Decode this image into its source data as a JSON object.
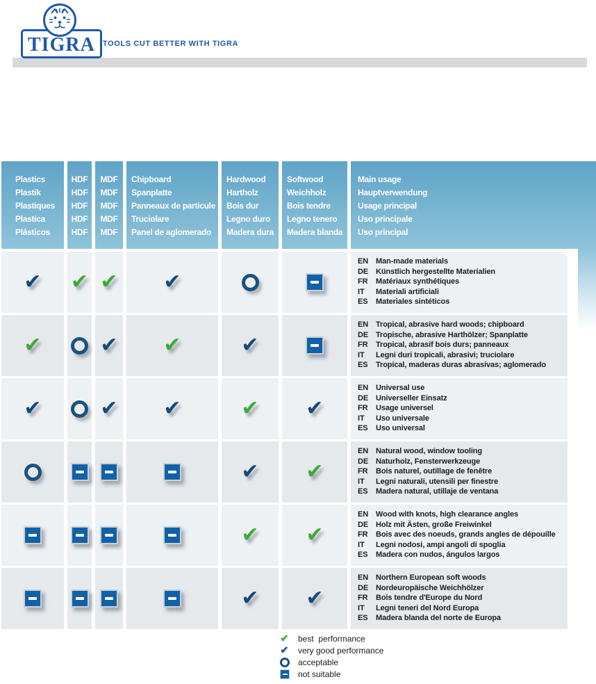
{
  "logo": {
    "brand": "TIGRA",
    "tagline": "TOOLS CUT BETTER WITH TIGRA"
  },
  "colors": {
    "brand_blue": "#2058a8",
    "header_gradient_top": "#5fa4c7",
    "header_gradient_bottom": "#8fc3da",
    "best_green": "#3ea93a",
    "very_good_navy": "#17497a",
    "acceptable_ring_blue": "#1a5181",
    "not_suitable_blue": "#1161a8",
    "row_light": "#eef1f3",
    "row_dark": "#e5e9ec",
    "gray_bar": "#d8d9da"
  },
  "table": {
    "header": {
      "columns": [
        {
          "id": "plastics",
          "lines": [
            "Plastics",
            "Plastik",
            "Plastiques",
            "Plastica",
            "Plásticos"
          ]
        },
        {
          "id": "hdf",
          "lines": [
            "HDF",
            "HDF",
            "HDF",
            "HDF",
            "HDF"
          ]
        },
        {
          "id": "mdf",
          "lines": [
            "MDF",
            "MDF",
            "MDF",
            "MDF",
            "MDF"
          ]
        },
        {
          "id": "chipboard",
          "lines": [
            "Chipboard",
            "Spanplatte",
            "Panneaux de particule",
            "Truciolare",
            "Panel de aglomerado"
          ]
        },
        {
          "id": "hardwood",
          "lines": [
            "Hardwood",
            "Hartholz",
            "Bois dur",
            "Legno duro",
            "Madera dura"
          ]
        },
        {
          "id": "softwood",
          "lines": [
            "Softwood",
            "Weichholz",
            "Bois tendre",
            "Legno tenero",
            "Madera blanda"
          ]
        },
        {
          "id": "main-usage",
          "lines": [
            "Main usage",
            "Hauptverwendung",
            "Usage principal",
            "Uso principale",
            "Uso principal"
          ]
        }
      ]
    },
    "rows": [
      {
        "ratings": [
          "very-good",
          "best",
          "best",
          "very-good",
          "acceptable",
          "not-suitable"
        ],
        "usage": [
          [
            "EN",
            "Man-made materials"
          ],
          [
            "DE",
            "Künstlich hergestellte Materialien"
          ],
          [
            "FR",
            "Matériaux synthétiques"
          ],
          [
            "IT",
            "Materiali artificiali"
          ],
          [
            "ES",
            "Materiales sintéticos"
          ]
        ]
      },
      {
        "ratings": [
          "best",
          "acceptable",
          "very-good",
          "best",
          "very-good",
          "not-suitable"
        ],
        "usage": [
          [
            "EN",
            "Tropical, abrasive hard woods; chipboard"
          ],
          [
            "DE",
            "Tropische, abrasive Harthölzer; Spanplatte"
          ],
          [
            "FR",
            "Tropical, abrasif bois durs; panneaux"
          ],
          [
            "IT",
            "Legni duri tropicali, abrasivi; truciolare"
          ],
          [
            "ES",
            "Tropical, maderas duras abrasivas; aglomerado"
          ]
        ]
      },
      {
        "ratings": [
          "very-good",
          "acceptable",
          "very-good",
          "very-good",
          "best",
          "very-good"
        ],
        "usage": [
          [
            "EN",
            "Universal use"
          ],
          [
            "DE",
            "Universeller Einsatz"
          ],
          [
            "FR",
            "Usage universel"
          ],
          [
            "IT",
            "Uso universale"
          ],
          [
            "ES",
            "Uso universal"
          ]
        ]
      },
      {
        "ratings": [
          "acceptable",
          "not-suitable",
          "not-suitable",
          "not-suitable",
          "very-good",
          "best"
        ],
        "usage": [
          [
            "EN",
            "Natural wood, window tooling"
          ],
          [
            "DE",
            "Naturholz, Fensterwerkzeuge"
          ],
          [
            "FR",
            "Bois naturel, outillage de fenêtre"
          ],
          [
            "IT",
            "Legni naturali, utensili per finestre"
          ],
          [
            "ES",
            "Madera natural, utillaje de ventana"
          ]
        ]
      },
      {
        "ratings": [
          "not-suitable",
          "not-suitable",
          "not-suitable",
          "not-suitable",
          "best",
          "best"
        ],
        "usage": [
          [
            "EN",
            "Wood with knots, high clearance angles"
          ],
          [
            "DE",
            "Holz mit Ästen, große Freiwinkel"
          ],
          [
            "FR",
            "Bois avec des noeuds, grands angles de dépouille"
          ],
          [
            "IT",
            "Legni nodosi, ampi angoli di spoglia"
          ],
          [
            "ES",
            "Madera con nudos, ángulos largos"
          ]
        ]
      },
      {
        "ratings": [
          "not-suitable",
          "not-suitable",
          "not-suitable",
          "not-suitable",
          "very-good",
          "very-good"
        ],
        "usage": [
          [
            "EN",
            "Northern European soft woods"
          ],
          [
            "DE",
            "Nordeuropäische Weichhölzer"
          ],
          [
            "FR",
            "Bois tendre d'Europe du Nord"
          ],
          [
            "IT",
            "Legni teneri del Nord Europa"
          ],
          [
            "ES",
            "Madera blanda del norte de Europa"
          ]
        ]
      }
    ]
  },
  "legend": {
    "items": [
      {
        "icon": "best",
        "label": "best  performance"
      },
      {
        "icon": "very-good",
        "label": "very good performance"
      },
      {
        "icon": "acceptable",
        "label": "acceptable"
      },
      {
        "icon": "not-suitable",
        "label": "not suitable"
      }
    ]
  }
}
